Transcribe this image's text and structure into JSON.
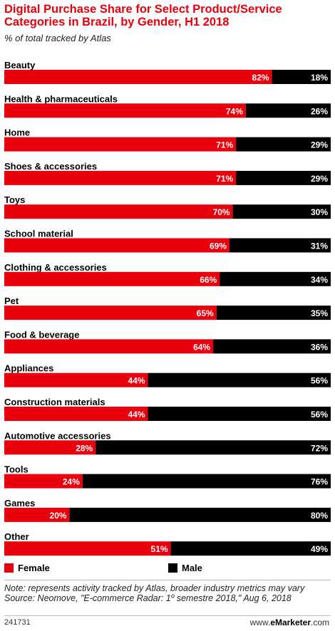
{
  "header": {
    "title": "Digital Purchase Share for Select Product/Service Categories in Brazil, by Gender, H1 2018",
    "subtitle": "% of total tracked by Atlas"
  },
  "legend": {
    "female_label": "Female",
    "male_label": "Male"
  },
  "colors": {
    "female": "#e8000d",
    "male": "#000000"
  },
  "footer": {
    "note": "Note: represents activity tracked by Atlas, broader industry metrics may vary",
    "source": "Source: Neomove, \"E-commerce Radar: 1º semestre 2018,\" Aug 6, 2018",
    "chart_id": "241731",
    "brand_prefix": "www.",
    "brand_name": "eMarketer",
    "brand_suffix": ".com"
  },
  "chart_data": {
    "type": "bar",
    "orientation": "horizontal",
    "stacked": true,
    "unit": "%",
    "categories": [
      "Beauty",
      "Health & pharmaceuticals",
      "Home",
      "Shoes & accessories",
      "Toys",
      "School material",
      "Clothing & accessories",
      "Pet",
      "Food & beverage",
      "Appliances",
      "Construction materials",
      "Automotive accessories",
      "Tools",
      "Games",
      "Other"
    ],
    "series": [
      {
        "name": "Female",
        "values": [
          82,
          74,
          71,
          71,
          70,
          69,
          66,
          65,
          64,
          44,
          44,
          28,
          24,
          20,
          51
        ]
      },
      {
        "name": "Male",
        "values": [
          18,
          26,
          29,
          29,
          30,
          31,
          34,
          35,
          36,
          56,
          56,
          72,
          76,
          80,
          49
        ]
      }
    ],
    "xlim": [
      0,
      100
    ],
    "legend_position": "bottom",
    "grid": false
  }
}
